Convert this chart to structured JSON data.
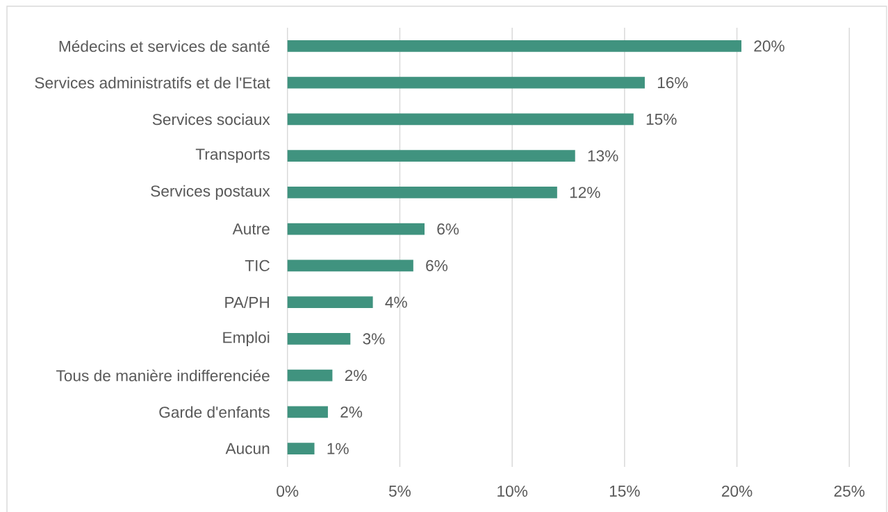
{
  "chart_data": {
    "type": "bar",
    "orientation": "horizontal",
    "categories": [
      "Médecins et services de santé",
      "Services administratifs et de l'Etat",
      "Services sociaux",
      "Transports",
      "Services postaux",
      "Autre",
      "TIC",
      "PA/PH",
      "Emploi",
      "Tous de manière indifferenciée",
      "Garde d'enfants",
      "Aucun"
    ],
    "values": [
      20.2,
      15.9,
      15.4,
      12.8,
      12.0,
      6.1,
      5.6,
      3.8,
      2.8,
      2.0,
      1.8,
      1.2
    ],
    "value_labels": [
      "20%",
      "16%",
      "15%",
      "13%",
      "12%",
      "6%",
      "6%",
      "4%",
      "3%",
      "2%",
      "2%",
      "1%"
    ],
    "color": "#40937f",
    "xlim": [
      0,
      25
    ],
    "xticks": [
      {
        "value": 0,
        "label": "0%"
      },
      {
        "value": 5,
        "label": "5%"
      },
      {
        "value": 10,
        "label": "10%"
      },
      {
        "value": 15,
        "label": "15%"
      },
      {
        "value": 20,
        "label": "20%"
      },
      {
        "value": 25,
        "label": "25%"
      }
    ],
    "grid": "x"
  }
}
